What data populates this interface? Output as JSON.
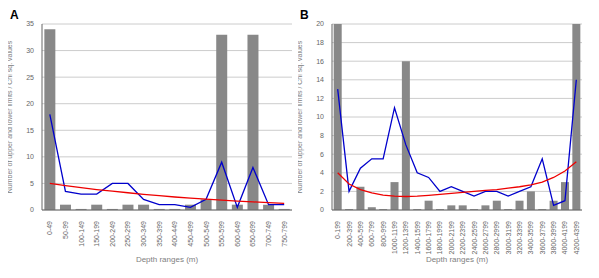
{
  "chart_data": [
    {
      "type": "bar",
      "title": "A",
      "xlabel": "Depth ranges (m)",
      "ylabel": "Number of upper and lower limits / Chi sq. values",
      "categories": [
        "0-49",
        "50-99",
        "100-149",
        "150-199",
        "200-249",
        "250-299",
        "300-349",
        "350-399",
        "400-449",
        "450-499",
        "500-549",
        "550-599",
        "600-649",
        "650-699",
        "700-749",
        "750-799"
      ],
      "series": [
        {
          "type": "bar",
          "color": "#888888",
          "values": [
            34,
            1,
            0.2,
            1,
            0.2,
            1,
            1,
            0.2,
            0.2,
            1,
            2,
            33,
            1,
            33,
            1,
            0.2
          ]
        },
        {
          "type": "line",
          "color": "#0000cc",
          "values": [
            18,
            3.5,
            3,
            3,
            5,
            5,
            2,
            1,
            1,
            0.5,
            2,
            9,
            0.5,
            8,
            1,
            1
          ]
        },
        {
          "type": "line",
          "color": "#ee0000",
          "values": [
            5.0,
            4.6,
            4.2,
            3.85,
            3.55,
            3.25,
            2.95,
            2.7,
            2.45,
            2.25,
            2.05,
            1.85,
            1.68,
            1.52,
            1.38,
            1.25
          ]
        }
      ],
      "ylim": [
        0,
        35
      ],
      "yticks": [
        0,
        5,
        10,
        15,
        20,
        25,
        30,
        35
      ],
      "grid": true
    },
    {
      "type": "bar",
      "title": "B",
      "xlabel": "Depth ranges (m)",
      "ylabel": "Number of upper and lower limits / Chi sq. values",
      "categories": [
        "0-199",
        "200-399",
        "400-599",
        "600-799",
        "800-999",
        "1000-1199",
        "1200-1399",
        "1400-1599",
        "1600-1799",
        "1800-1999",
        "2000-2199",
        "2200-2399",
        "2400-2599",
        "2600-2799",
        "2800-2999",
        "3000-3199",
        "3200-3399",
        "3400-3599",
        "3600-3799",
        "3800-3999",
        "4000-4199",
        "4200-4399"
      ],
      "series": [
        {
          "type": "bar",
          "color": "#888888",
          "values": [
            20,
            0.1,
            2.5,
            0.3,
            0.1,
            3,
            16,
            0.1,
            1,
            0.1,
            0.5,
            0.5,
            0.1,
            0.5,
            1,
            0.1,
            1,
            2,
            0.1,
            1,
            3,
            20
          ]
        },
        {
          "type": "line",
          "color": "#0000cc",
          "values": [
            13,
            2,
            4.5,
            5.5,
            5.5,
            11,
            7,
            4,
            3.5,
            2,
            2.5,
            2,
            1.5,
            2,
            2,
            1.5,
            2,
            2.5,
            5.5,
            0.5,
            1,
            14
          ]
        },
        {
          "type": "line",
          "color": "#ee0000",
          "values": [
            4.0,
            2.8,
            2.2,
            1.85,
            1.6,
            1.5,
            1.45,
            1.5,
            1.58,
            1.68,
            1.78,
            1.9,
            2.0,
            2.1,
            2.2,
            2.35,
            2.5,
            2.7,
            3.0,
            3.5,
            4.2,
            5.2
          ]
        }
      ],
      "ylim": [
        0,
        20
      ],
      "yticks": [
        0,
        2,
        4,
        6,
        8,
        10,
        12,
        14,
        16,
        18,
        20
      ],
      "grid": true
    }
  ]
}
